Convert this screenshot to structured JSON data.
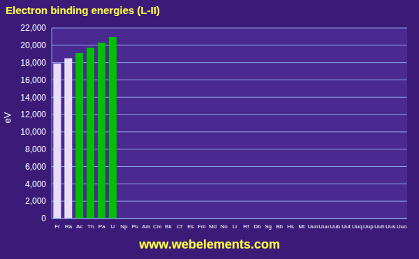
{
  "chart_data": {
    "type": "bar",
    "title": "Electron binding energies (L-II)",
    "y_label": "eV",
    "annotations": [
      "www.webelements.com"
    ],
    "categories": [
      "Fr",
      "Ra",
      "Ac",
      "Th",
      "Pa",
      "U",
      "Np",
      "Pu",
      "Am",
      "Cm",
      "Bk",
      "Cf",
      "Es",
      "Fm",
      "Md",
      "No",
      "Lr",
      "Rf",
      "Db",
      "Sg",
      "Bh",
      "Hs",
      "Mt",
      "Uun",
      "Uuu",
      "Uub",
      "Uut",
      "Uuq",
      "Uup",
      "Uuh",
      "Uus",
      "Uuo"
    ],
    "values": [
      17900,
      18500,
      19100,
      19700,
      20300,
      20950,
      null,
      null,
      null,
      null,
      null,
      null,
      null,
      null,
      null,
      null,
      null,
      null,
      null,
      null,
      null,
      null,
      null,
      null,
      null,
      null,
      null,
      null,
      null,
      null,
      null,
      null
    ],
    "colors": [
      "#e6defa",
      "#e6defa",
      "#00c000",
      "#00c000",
      "#00c000",
      "#00c000",
      "#00c000",
      "#00c000",
      "#00c000",
      "#00c000",
      "#00c000",
      "#00c000",
      "#00c000",
      "#00c000",
      "#00c000",
      "#00c000",
      "#00c000",
      "#e00000",
      "#e00000",
      "#e00000",
      "#e00000",
      "#e00000",
      "#e00000",
      "#e00000",
      "#e00000",
      "#f0e040",
      "#505070",
      "#505070",
      "#505070",
      "#505070",
      "#505070",
      "#505070"
    ],
    "ylim": [
      0,
      22000
    ],
    "yticks": [
      0,
      {
        "value": 2000,
        "label": "2,000"
      },
      {
        "value": 4000,
        "label": "4,000"
      },
      {
        "value": 6000,
        "label": "6,000"
      },
      {
        "value": 8000,
        "label": "8,000"
      },
      {
        "value": 10000,
        "label": "10,000"
      },
      {
        "value": 12000,
        "label": "12,000"
      },
      {
        "value": 14000,
        "label": "14,000"
      },
      {
        "value": 16000,
        "label": "16,000"
      },
      {
        "value": 18000,
        "label": "18,000"
      },
      {
        "value": 20000,
        "label": "20,000"
      },
      {
        "value": 22000,
        "label": "22,000"
      }
    ],
    "grid": true
  }
}
